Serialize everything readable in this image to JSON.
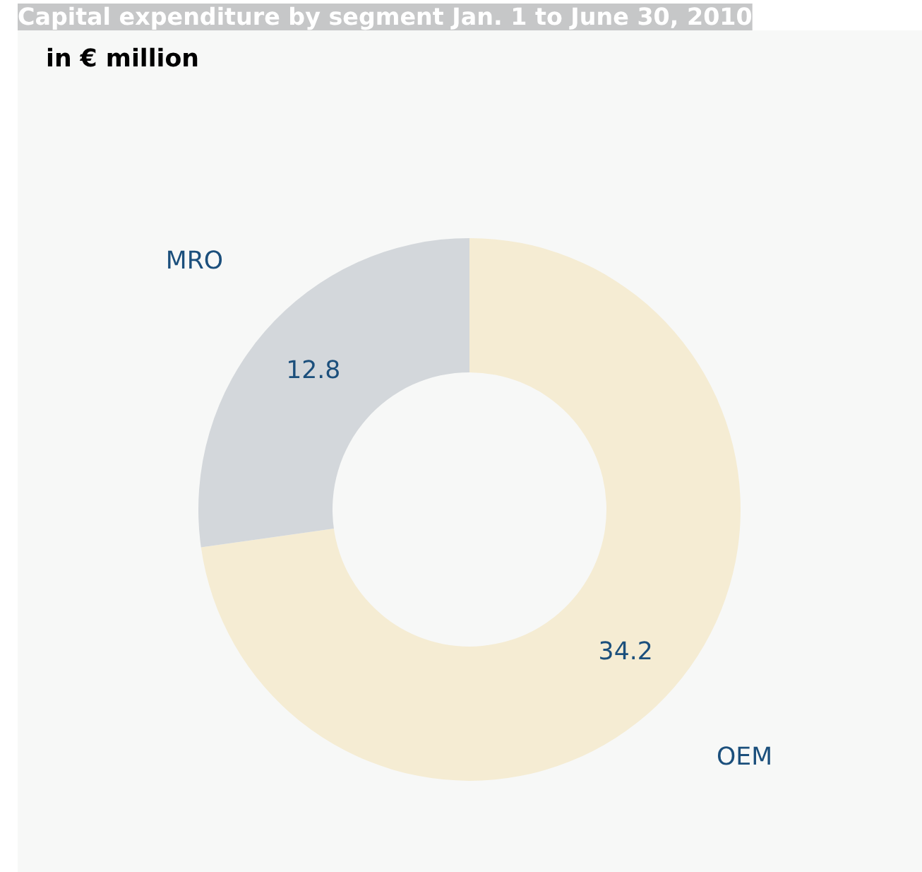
{
  "chart_data": {
    "type": "donut",
    "title": "Capital expenditure by segment Jan. 1 to June 30, 2010",
    "subtitle": "in € million",
    "categories": [
      "OEM",
      "MRO"
    ],
    "values": [
      34.2,
      12.8
    ],
    "colors": [
      "#f5ecd3",
      "#d3d7db"
    ],
    "data_labels": true
  }
}
